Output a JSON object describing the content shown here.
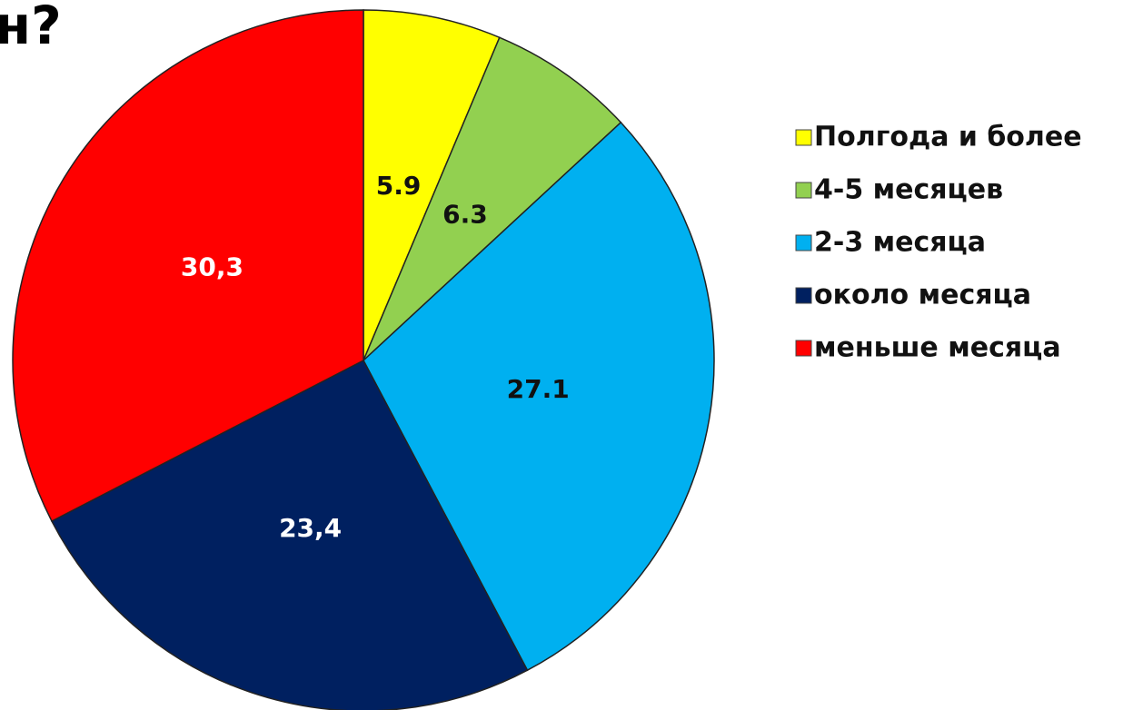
{
  "chart_data": {
    "type": "pie",
    "title": "н?",
    "categories": [
      "Полгода и более",
      "4-5 месяцев",
      "2-3 месяца",
      "около месяца",
      "меньше месяца"
    ],
    "values": [
      5.9,
      6.3,
      27.1,
      23.4,
      30.3
    ],
    "value_labels": [
      "5.9",
      "6.3",
      "27.1",
      "23,4",
      "30,3"
    ],
    "colors": [
      "#ffff00",
      "#92d050",
      "#00b0f0",
      "#002060",
      "#ff0000"
    ],
    "legend": "right"
  }
}
